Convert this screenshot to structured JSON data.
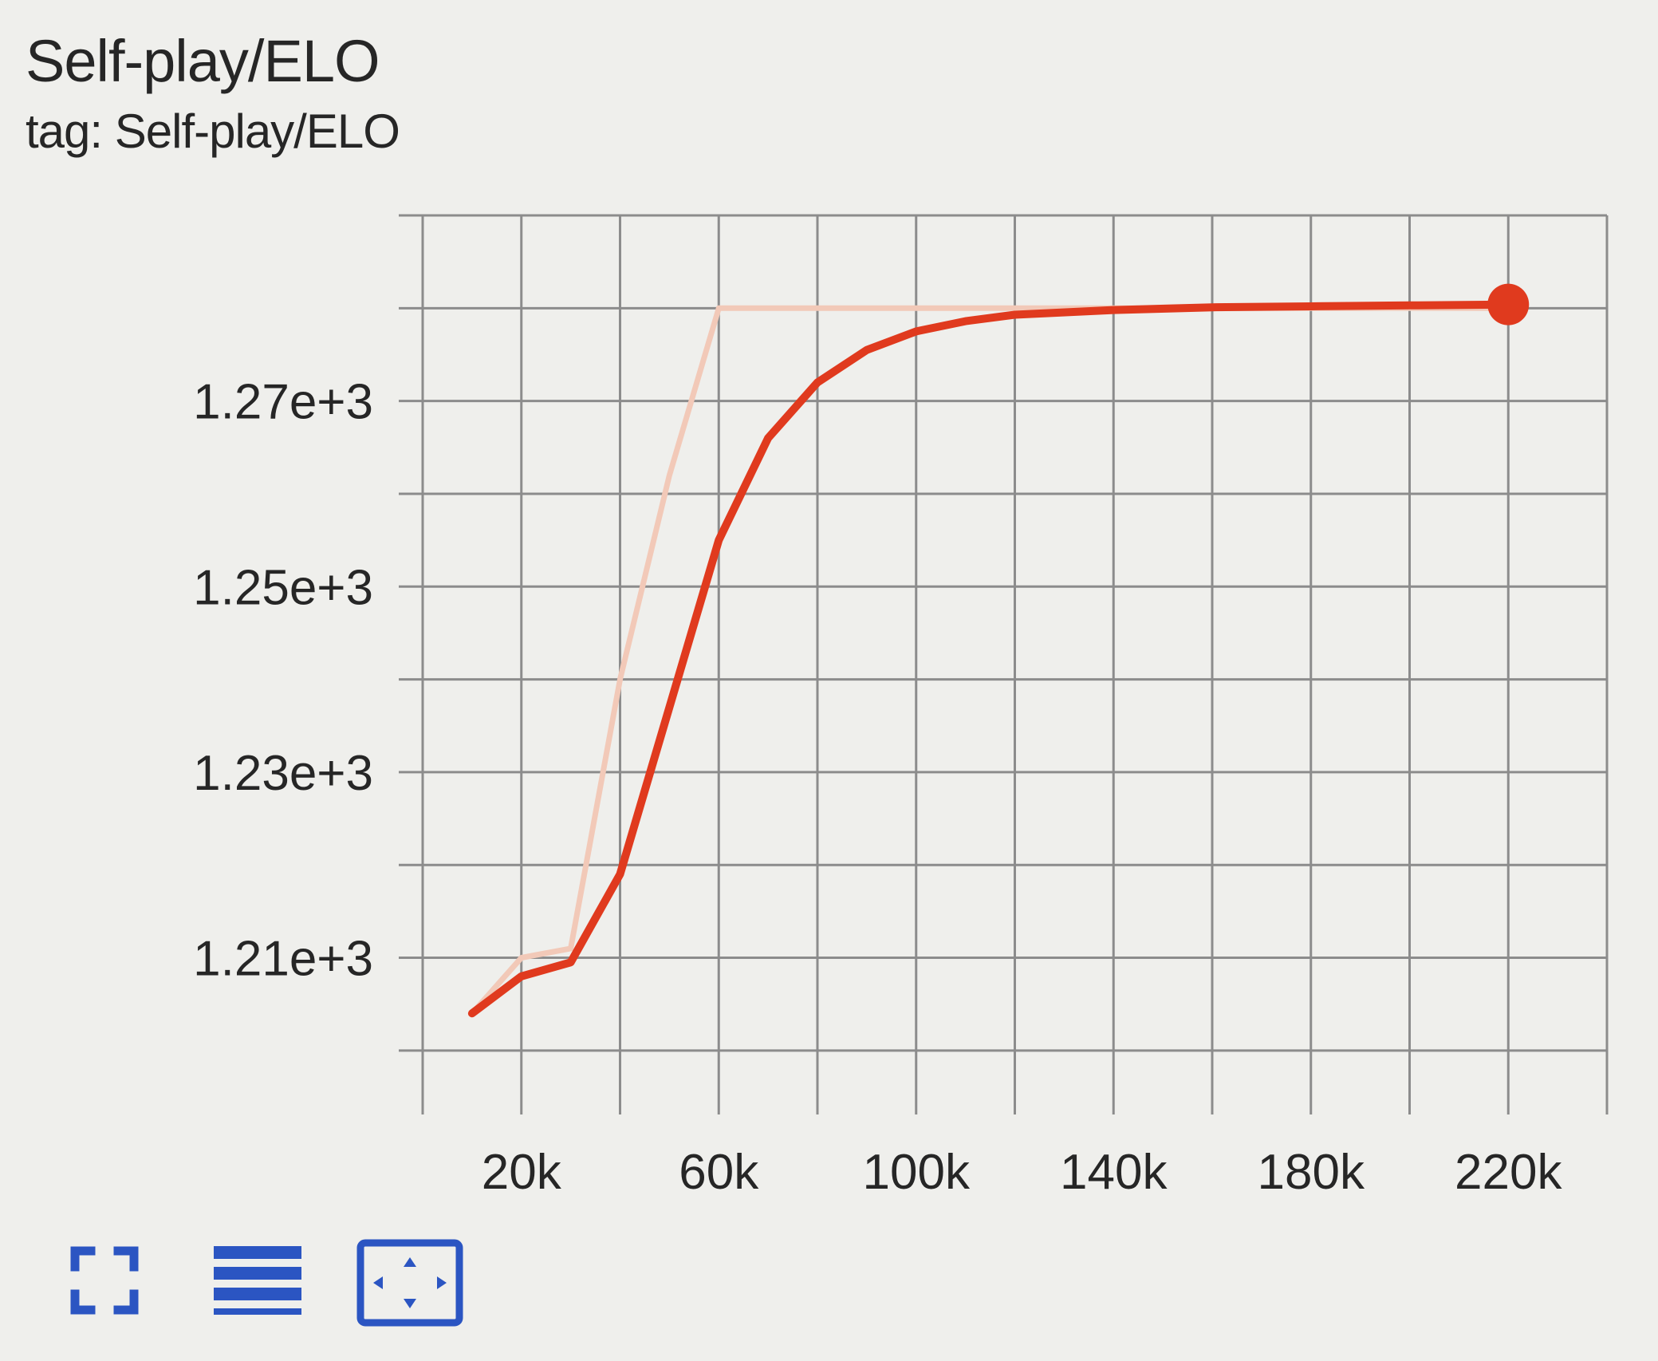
{
  "card": {
    "title": "Self-play/ELO",
    "subtitle": "tag: Self-play/ELO"
  },
  "colors": {
    "smoothed": "#e03a1e",
    "raw": "#f2c9b8",
    "grid": "#8c8c8c",
    "icon": "#2b55c2",
    "background": "#efefec"
  },
  "toolbar": [
    {
      "name": "fit-domain-button",
      "icon": "fullscreen-icon"
    },
    {
      "name": "toggle-log-scale-button",
      "icon": "list-lines-icon"
    },
    {
      "name": "pan-zoom-button",
      "icon": "fit-to-data-icon"
    }
  ],
  "chart_data": {
    "type": "line",
    "title": "Self-play/ELO",
    "xlabel": "",
    "ylabel": "",
    "xlim": [
      0,
      240000
    ],
    "ylim": [
      1195,
      1290
    ],
    "x_ticks": [
      20000,
      60000,
      100000,
      140000,
      180000,
      220000
    ],
    "x_tick_labels": [
      "20k",
      "60k",
      "100k",
      "140k",
      "180k",
      "220k"
    ],
    "y_ticks": [
      1210,
      1230,
      1250,
      1270
    ],
    "y_tick_labels": [
      "1.21e+3",
      "1.23e+3",
      "1.25e+3",
      "1.27e+3"
    ],
    "grid": true,
    "series": [
      {
        "role": "raw",
        "x": [
          10000,
          20000,
          30000,
          40000,
          50000,
          60000,
          70000,
          80000,
          90000,
          100000,
          120000,
          140000,
          160000,
          180000,
          200000,
          220000
        ],
        "y": [
          1204,
          1210,
          1211,
          1240,
          1262,
          1280,
          1280,
          1280,
          1280,
          1280,
          1280,
          1280,
          1280,
          1280,
          1280,
          1280
        ]
      },
      {
        "role": "smoothed",
        "x": [
          10000,
          20000,
          30000,
          40000,
          50000,
          60000,
          70000,
          80000,
          90000,
          100000,
          110000,
          120000,
          140000,
          160000,
          180000,
          200000,
          220000
        ],
        "y": [
          1204,
          1208,
          1209.5,
          1219,
          1237,
          1255,
          1266,
          1272,
          1275.5,
          1277.5,
          1278.6,
          1279.3,
          1279.8,
          1280.1,
          1280.2,
          1280.3,
          1280.4
        ]
      }
    ]
  }
}
